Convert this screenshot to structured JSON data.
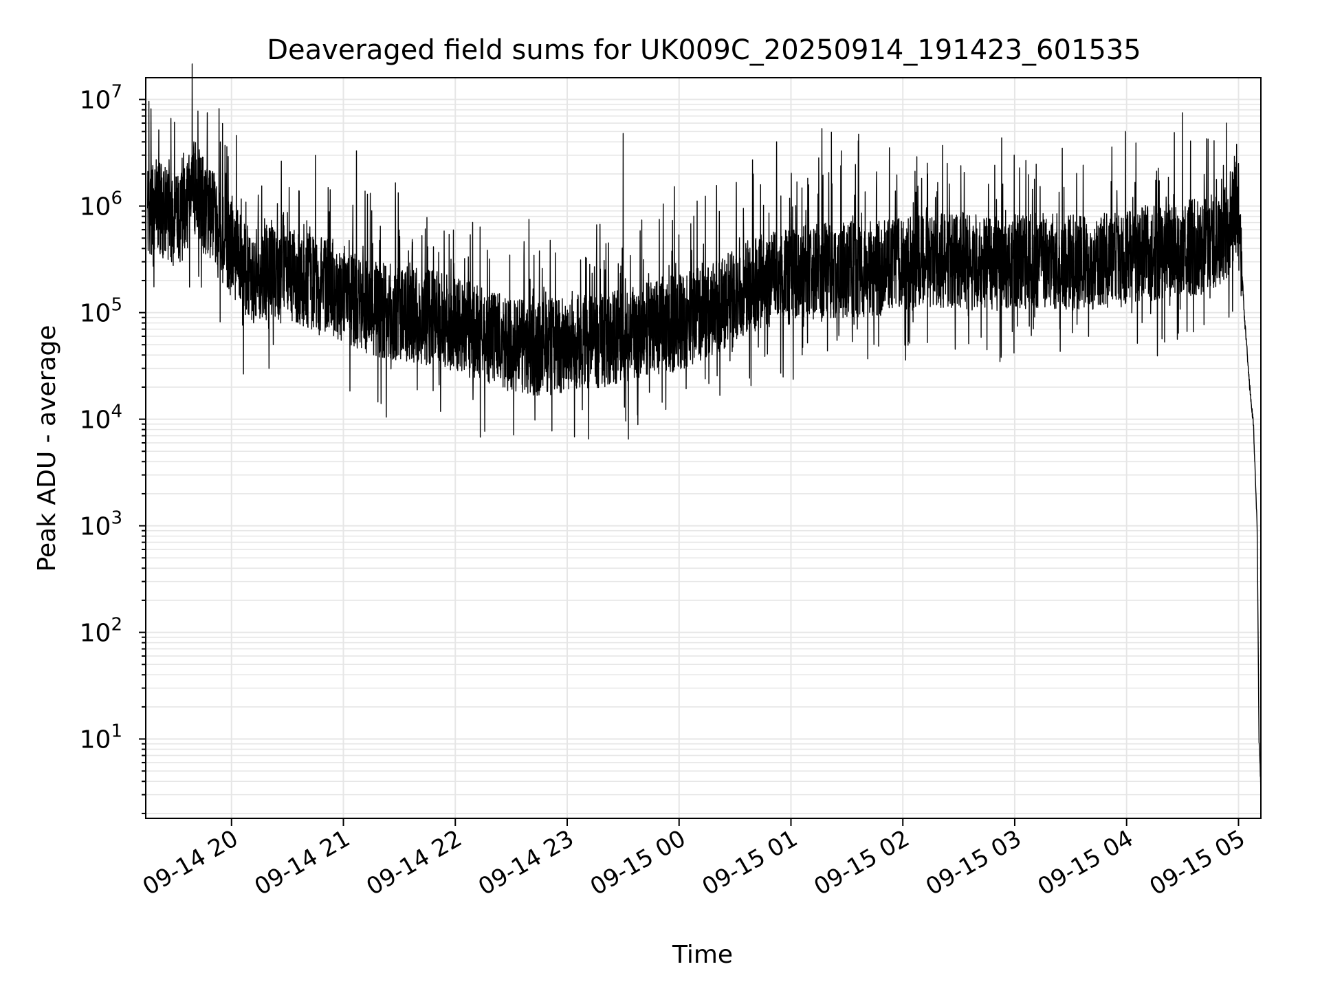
{
  "chart_data": {
    "type": "line",
    "title": "Deaveraged field sums for UK009C_20250914_191423_601535",
    "xlabel": "Time",
    "ylabel": "Peak ADU - average",
    "yscale": "log",
    "grid": true,
    "ylim": [
      1.8,
      16000000
    ],
    "xlim": [
      "2025-09-14 19:14",
      "2025-09-15 05:12"
    ],
    "x_ticks": [
      "2025-09-14 20:00",
      "2025-09-14 21:00",
      "2025-09-14 22:00",
      "2025-09-14 23:00",
      "2025-09-15 00:00",
      "2025-09-15 01:00",
      "2025-09-15 02:00",
      "2025-09-15 03:00",
      "2025-09-15 04:00",
      "2025-09-15 05:00"
    ],
    "x_tick_labels": [
      "09-14 20",
      "09-14 21",
      "09-14 22",
      "09-14 23",
      "09-15 00",
      "09-15 01",
      "09-15 02",
      "09-15 03",
      "09-15 04",
      "09-15 05"
    ],
    "y_ticks": [
      10,
      100,
      1000,
      10000,
      100000,
      1000000,
      10000000
    ],
    "y_tick_labels": [
      {
        "base": "10",
        "exp": "1"
      },
      {
        "base": "10",
        "exp": "2"
      },
      {
        "base": "10",
        "exp": "3"
      },
      {
        "base": "10",
        "exp": "4"
      },
      {
        "base": "10",
        "exp": "5"
      },
      {
        "base": "10",
        "exp": "6"
      },
      {
        "base": "10",
        "exp": "7"
      }
    ],
    "line_color": "#000000",
    "grid_color": "#e6e6e6",
    "series": [
      {
        "x": [
          "2025-09-14 19:15",
          "2025-09-14 19:20",
          "2025-09-14 19:25",
          "2025-09-14 19:30",
          "2025-09-14 19:35",
          "2025-09-14 19:40",
          "2025-09-14 19:45",
          "2025-09-14 19:50",
          "2025-09-14 19:55",
          "2025-09-14 20:00",
          "2025-09-14 20:10",
          "2025-09-14 20:20",
          "2025-09-14 20:30",
          "2025-09-14 20:40",
          "2025-09-14 20:50",
          "2025-09-14 21:00",
          "2025-09-14 21:15",
          "2025-09-14 21:30",
          "2025-09-14 21:45",
          "2025-09-14 22:00",
          "2025-09-14 22:15",
          "2025-09-14 22:30",
          "2025-09-14 22:45",
          "2025-09-14 23:00",
          "2025-09-14 23:15",
          "2025-09-14 23:30",
          "2025-09-14 23:45",
          "2025-09-15 00:00",
          "2025-09-15 00:15",
          "2025-09-15 00:30",
          "2025-09-15 00:45",
          "2025-09-15 01:00",
          "2025-09-15 01:15",
          "2025-09-15 01:30",
          "2025-09-15 01:45",
          "2025-09-15 02:00",
          "2025-09-15 02:15",
          "2025-09-15 02:30",
          "2025-09-15 02:45",
          "2025-09-15 03:00",
          "2025-09-15 03:15",
          "2025-09-15 03:30",
          "2025-09-15 03:45",
          "2025-09-15 04:00",
          "2025-09-15 04:10",
          "2025-09-15 04:20",
          "2025-09-15 04:30",
          "2025-09-15 04:40",
          "2025-09-15 04:50",
          "2025-09-15 04:55",
          "2025-09-15 05:00",
          "2025-09-15 05:03",
          "2025-09-15 05:06",
          "2025-09-15 05:08",
          "2025-09-15 05:10",
          "2025-09-15 05:11",
          "2025-09-15 05:12"
        ],
        "values": [
          900000,
          1000000,
          800000,
          700000,
          900000,
          1500000,
          1000000,
          800000,
          500000,
          400000,
          220000,
          250000,
          230000,
          200000,
          180000,
          150000,
          110000,
          100000,
          90000,
          80000,
          60000,
          50000,
          45000,
          50000,
          55000,
          60000,
          70000,
          80000,
          100000,
          150000,
          200000,
          220000,
          250000,
          250000,
          260000,
          280000,
          300000,
          300000,
          290000,
          300000,
          310000,
          300000,
          300000,
          320000,
          350000,
          380000,
          400000,
          420000,
          500000,
          600000,
          1200000,
          100000,
          20000,
          9000,
          1000,
          10,
          3.5
        ],
        "spikes": [
          {
            "x": "2025-09-14 19:42",
            "y": 7800000
          },
          {
            "x": "2025-09-14 19:47",
            "y": 7500000
          },
          {
            "x": "2025-09-14 19:54",
            "y": 4000000
          },
          {
            "x": "2025-09-14 20:45",
            "y": 3000000
          },
          {
            "x": "2025-09-14 21:07",
            "y": 3300000
          },
          {
            "x": "2025-09-14 23:30",
            "y": 4800000
          },
          {
            "x": "2025-09-15 01:27",
            "y": 3300000
          },
          {
            "x": "2025-09-15 04:05",
            "y": 3900000
          },
          {
            "x": "2025-09-15 04:30",
            "y": 7500000
          },
          {
            "x": "2025-09-15 04:59",
            "y": 3800000
          }
        ]
      }
    ]
  }
}
